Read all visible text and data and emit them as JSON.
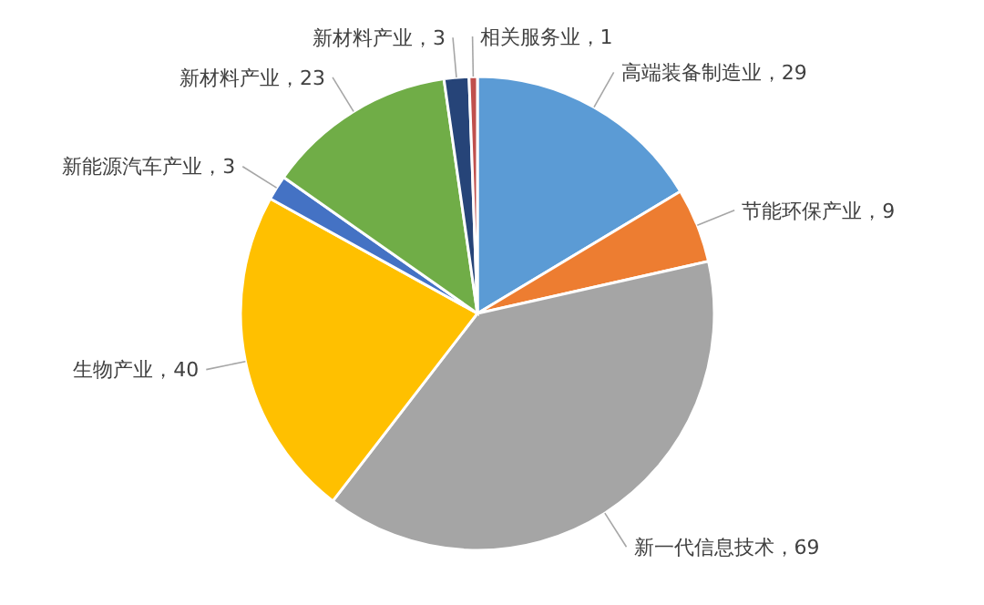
{
  "chart_data": {
    "type": "pie",
    "categories": [
      "高端装备制造业",
      "节能环保产业",
      "新一代信息技术",
      "生物产业",
      "新能源汽车产业",
      "新材料产业",
      "新材料产业",
      "相关服务业"
    ],
    "values": [
      29,
      9,
      69,
      40,
      3,
      23,
      3,
      1
    ],
    "colors": [
      "#5b9bd5",
      "#ed7d31",
      "#a5a5a5",
      "#ffc000",
      "#4472c4",
      "#70ad47",
      "#264478",
      "#c0504d"
    ],
    "value_labels": [
      "，29",
      "，9",
      "，69",
      "，40",
      "，3",
      "，23",
      "，3",
      "，1"
    ],
    "legend": false
  }
}
